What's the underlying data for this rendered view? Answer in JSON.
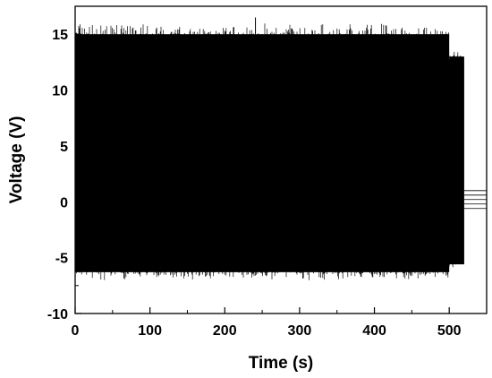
{
  "chart_data": {
    "type": "line",
    "title": "",
    "xlabel": "Time (s)",
    "ylabel": "Voltage (V)",
    "xlim": [
      0,
      550
    ],
    "ylim": [
      -10,
      17.5
    ],
    "x_ticks": [
      0,
      100,
      200,
      300,
      400,
      500
    ],
    "y_ticks": [
      -10,
      -5,
      0,
      5,
      10,
      15
    ],
    "grid": false,
    "legend": "none",
    "line_color": "#000000",
    "series": [
      {
        "segments": [
          {
            "x_start": 0,
            "x_end": 500,
            "y_upper_typical": 15.0,
            "y_upper_peak": 16.5,
            "y_lower_typical": -6.3,
            "y_lower_peak": -7.2
          },
          {
            "x_start": 500,
            "x_end": 520,
            "y_upper_typical": 13.0,
            "y_upper_peak": 13.8,
            "y_lower_typical": -5.6,
            "y_lower_peak": -6.0
          }
        ],
        "decay_tail": {
          "x_start": 520,
          "x_end": 550,
          "y_values": [
            1.0,
            0.6,
            0.2,
            -0.2,
            -0.6
          ]
        }
      }
    ]
  }
}
